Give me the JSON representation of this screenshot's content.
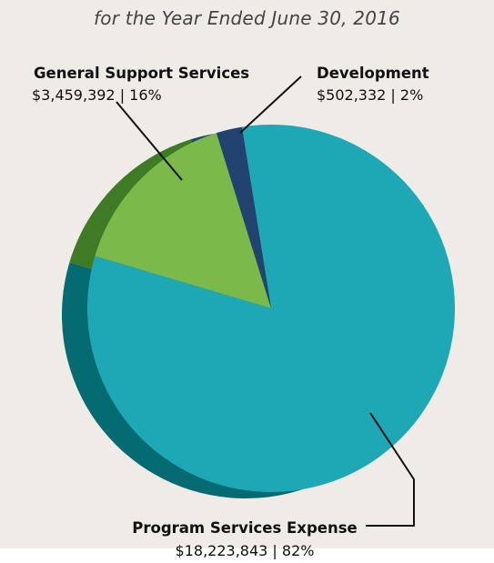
{
  "chart_data": {
    "type": "pie",
    "subtitle": "for the Year Ended June 30, 2016",
    "colors": {
      "background": "#efebe6",
      "program_services": "#1ea7b5",
      "program_services_side": "#056b72",
      "general_support": "#7ab94a",
      "general_support_side": "#3f7a25",
      "development": "#22436f"
    },
    "slices": [
      {
        "label": "Program Services Expense",
        "value": 18223843,
        "value_text": "$18,223,843",
        "percent": 82,
        "percent_text": "82%"
      },
      {
        "label": "General Support Services",
        "value": 3459392,
        "value_text": "$3,459,392",
        "percent": 16,
        "percent_text": "16%"
      },
      {
        "label": "Development",
        "value": 502332,
        "value_text": "$502,332",
        "percent": 2,
        "percent_text": "2%"
      }
    ]
  }
}
